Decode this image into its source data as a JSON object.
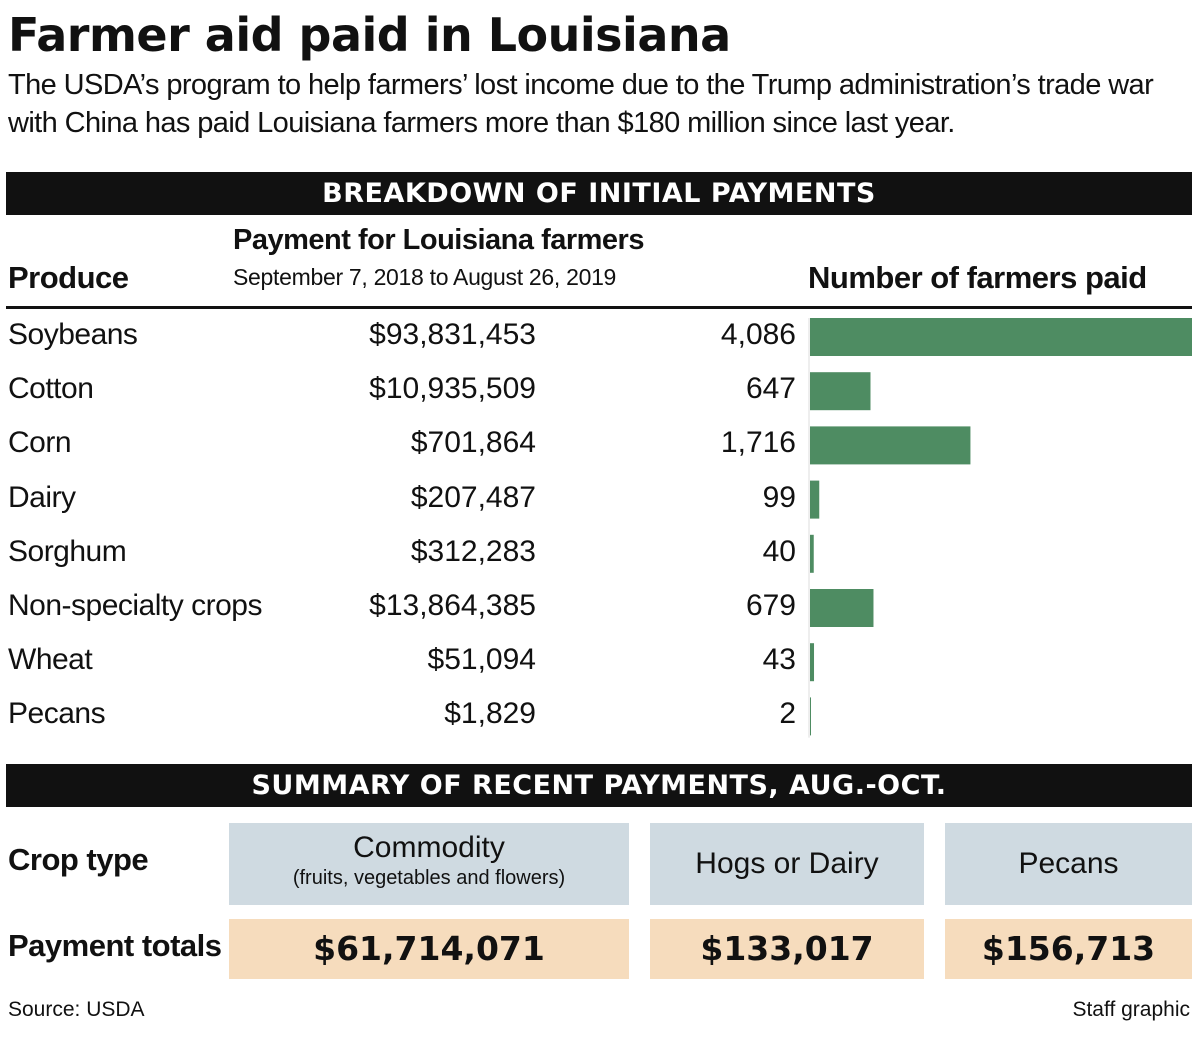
{
  "title": "Farmer aid paid in Louisiana",
  "subtitle": "The USDA’s program to help farmers’ lost income due to the Trump administration’s trade war with China has paid Louisiana farmers more than $180 million since last year.",
  "section1": {
    "banner": "BREAKDOWN OF INITIAL PAYMENTS",
    "col_produce": "Produce",
    "col_payment": "Payment for Louisiana farmers",
    "col_payment_sub": "September 7, 2018 to August 26, 2019",
    "col_count": "Number of farmers paid"
  },
  "section2": {
    "banner": "SUMMARY OF RECENT PAYMENTS, AUG.-OCT.",
    "row_crop": "Crop type",
    "row_pay": "Payment totals",
    "crops": [
      {
        "name": "Commodity",
        "note": "(fruits, vegetables and flowers)",
        "total": "$61,714,071"
      },
      {
        "name": "Hogs or Dairy",
        "note": "",
        "total": "$133,017"
      },
      {
        "name": "Pecans",
        "note": "",
        "total": "$156,713"
      }
    ]
  },
  "footer": {
    "source": "Source: USDA",
    "credit": "Staff graphic"
  },
  "colors": {
    "bar": "#4e8c62",
    "banner": "#111111",
    "crop_cell": "#cfdae1",
    "pay_cell": "#f6dcbd"
  },
  "chart_data": {
    "type": "table",
    "columns": [
      "Produce",
      "Payment for Louisiana farmers",
      "Number of farmers paid"
    ],
    "rows": [
      {
        "produce": "Soybeans",
        "payment": "$93,831,453",
        "farmers_label": "4,086",
        "farmers": 4086
      },
      {
        "produce": "Cotton",
        "payment": "$10,935,509",
        "farmers_label": "647",
        "farmers": 647
      },
      {
        "produce": "Corn",
        "payment": "$701,864",
        "farmers_label": "1,716",
        "farmers": 1716
      },
      {
        "produce": "Dairy",
        "payment": "$207,487",
        "farmers_label": "99",
        "farmers": 99
      },
      {
        "produce": "Sorghum",
        "payment": "$312,283",
        "farmers_label": "40",
        "farmers": 40
      },
      {
        "produce": "Non-specialty crops",
        "payment": "$13,864,385",
        "farmers_label": "679",
        "farmers": 679
      },
      {
        "produce": "Wheat",
        "payment": "$51,094",
        "farmers_label": "43",
        "farmers": 43
      },
      {
        "produce": "Pecans",
        "payment": "$1,829",
        "farmers_label": "2",
        "farmers": 2
      }
    ],
    "bar_max": 4086
  }
}
